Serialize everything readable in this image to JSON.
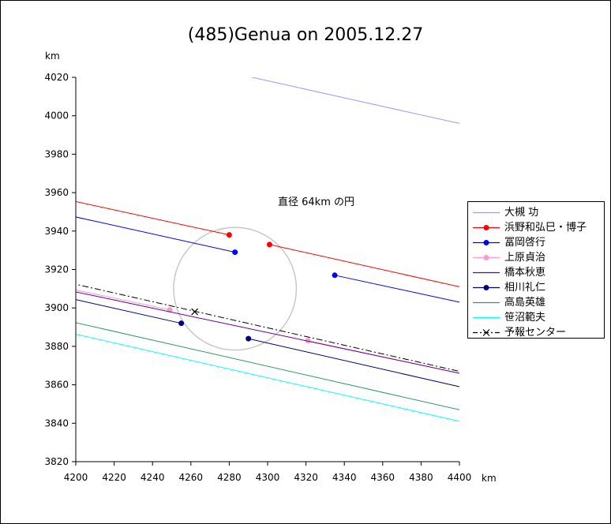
{
  "chart_data": {
    "type": "line",
    "title": "(485)Genua on 2005.12.27",
    "x_unit": "km",
    "y_unit": "km",
    "xlim": [
      4200,
      4400
    ],
    "ylim": [
      3820,
      4020
    ],
    "x_ticks": [
      4200,
      4220,
      4240,
      4260,
      4280,
      4300,
      4320,
      4340,
      4360,
      4380,
      4400
    ],
    "y_ticks": [
      3820,
      3840,
      3860,
      3880,
      3900,
      3920,
      3940,
      3960,
      3980,
      4000,
      4020
    ],
    "grid": false,
    "legend_position": "right",
    "annotation": "直径 64km の円",
    "circle": {
      "center": [
        4283,
        3910
      ],
      "diameter_km": 64,
      "color": "#c8c8c8"
    },
    "series": [
      {
        "name": "大槻 功",
        "color": "#9999ff",
        "marker": "none",
        "dashed": false,
        "segments": [
          {
            "x": [
              4283,
              4400
            ],
            "y": [
              4022,
              3996
            ]
          }
        ],
        "points": []
      },
      {
        "name": "浜野和弘巳・博子",
        "color": "#ff0000",
        "marker": "dot",
        "dashed": false,
        "segments": [
          {
            "x": [
              4197,
              4280
            ],
            "y": [
              3956,
              3938
            ]
          },
          {
            "x": [
              4301,
              4400
            ],
            "y": [
              3933,
              3911
            ]
          }
        ],
        "points": [
          {
            "x": 4280,
            "y": 3938
          },
          {
            "x": 4301,
            "y": 3933
          }
        ]
      },
      {
        "name": "冨岡啓行",
        "color": "#0000ff",
        "marker": "dot",
        "dashed": false,
        "segments": [
          {
            "x": [
              4197,
              4283
            ],
            "y": [
              3948,
              3929
            ]
          },
          {
            "x": [
              4335,
              4400
            ],
            "y": [
              3917,
              3903
            ]
          }
        ],
        "points": [
          {
            "x": 4283,
            "y": 3929
          },
          {
            "x": 4335,
            "y": 3917
          }
        ]
      },
      {
        "name": "上原貞治",
        "color": "#ff99cc",
        "marker": "dot",
        "dashed": false,
        "segments": [
          {
            "x": [
              4197,
              4249
            ],
            "y": [
              3910,
              3899
            ]
          },
          {
            "x": [
              4321,
              4400
            ],
            "y": [
              3883,
              3866
            ]
          }
        ],
        "points": [
          {
            "x": 4249,
            "y": 3899
          },
          {
            "x": 4321,
            "y": 3883
          }
        ]
      },
      {
        "name": "橋本秋恵",
        "color": "#660099",
        "marker": "none",
        "dashed": false,
        "segments": [
          {
            "x": [
              4197,
              4400
            ],
            "y": [
              3909,
              3866
            ]
          }
        ],
        "points": []
      },
      {
        "name": "相川礼仁",
        "color": "#000080",
        "marker": "dot",
        "dashed": false,
        "segments": [
          {
            "x": [
              4197,
              4255
            ],
            "y": [
              3905,
              3892
            ]
          },
          {
            "x": [
              4290,
              4400
            ],
            "y": [
              3884,
              3859
            ]
          }
        ],
        "points": [
          {
            "x": 4255,
            "y": 3892
          },
          {
            "x": 4290,
            "y": 3884
          }
        ]
      },
      {
        "name": "高島英雄",
        "color": "#339966",
        "marker": "none",
        "dashed": false,
        "segments": [
          {
            "x": [
              4197,
              4400
            ],
            "y": [
              3893,
              3847
            ]
          }
        ],
        "points": []
      },
      {
        "name": "笹沼範夫",
        "color": "#00ffff",
        "marker": "none",
        "dashed": false,
        "segments": [
          {
            "x": [
              4197,
              4400
            ],
            "y": [
              3887,
              3841
            ]
          }
        ],
        "points": []
      },
      {
        "name": "予報センター",
        "color": "#000000",
        "marker": "x",
        "dashed": true,
        "segments": [
          {
            "x": [
              4197,
              4400
            ],
            "y": [
              3913,
              3867
            ]
          }
        ],
        "points": [
          {
            "x": 4262,
            "y": 3898
          }
        ]
      }
    ]
  }
}
